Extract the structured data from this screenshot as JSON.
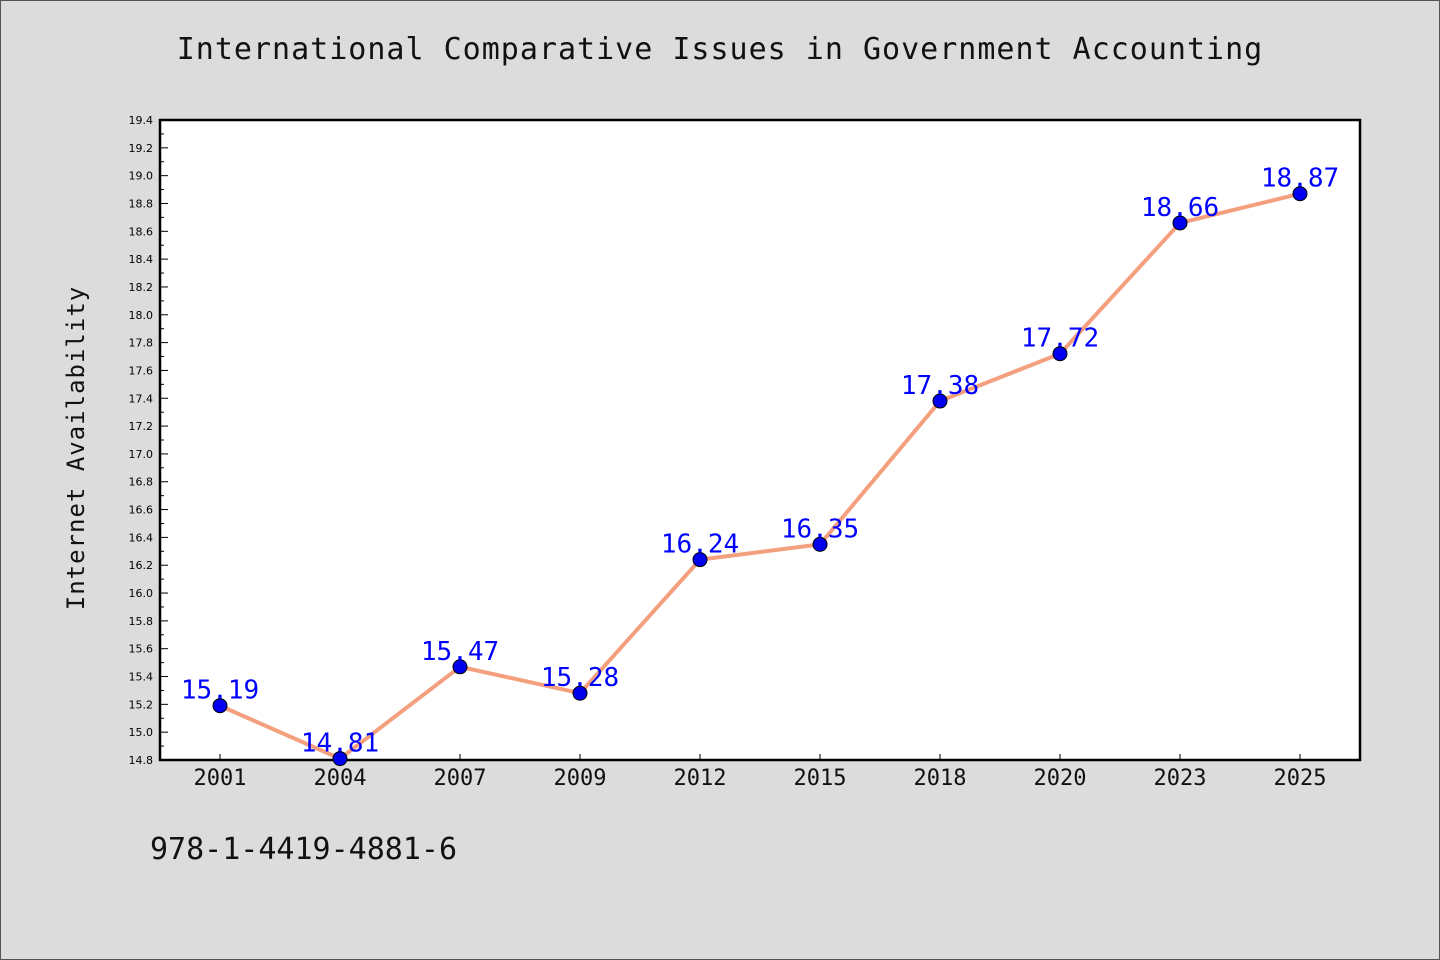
{
  "chart_data": {
    "type": "line",
    "title": "International Comparative Issues in Government Accounting",
    "xlabel": "",
    "ylabel": "Internet Availability",
    "categories": [
      "2001",
      "2004",
      "2007",
      "2009",
      "2012",
      "2015",
      "2018",
      "2020",
      "2023",
      "2025"
    ],
    "values": [
      15.19,
      14.81,
      15.47,
      15.28,
      16.24,
      16.35,
      17.38,
      17.72,
      18.66,
      18.87
    ],
    "data_labels": [
      "15.19",
      "14.81",
      "15.47",
      "15.28",
      "16.24",
      "16.35",
      "17.38",
      "17.72",
      "18.66",
      "18.87"
    ],
    "ylim": [
      14.8,
      19.4
    ],
    "yticks": [
      "14.8",
      "15.0",
      "15.2",
      "15.4",
      "15.6",
      "15.8",
      "16.0",
      "16.2",
      "16.4",
      "16.6",
      "16.8",
      "17.0",
      "17.2",
      "17.4",
      "17.6",
      "17.8",
      "18.0",
      "18.2",
      "18.4",
      "18.6",
      "18.8",
      "19.0",
      "19.2",
      "19.4"
    ],
    "grid": false,
    "line_color": "#f4a07f",
    "marker_color": "#0000ee",
    "label_color": "#0000ff"
  },
  "footer": {
    "isbn": "978-1-4419-4881-6"
  }
}
